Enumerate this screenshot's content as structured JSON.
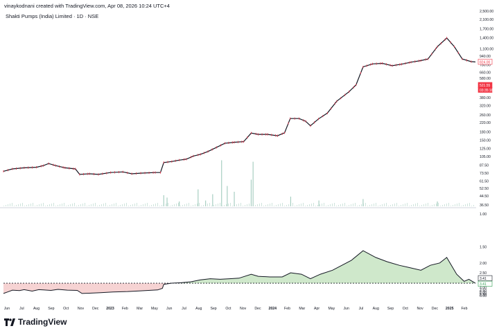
{
  "header": {
    "attribution": "vinaykodnani created with TradingView.com, Apr 08, 2026 10:24 UTC+4",
    "symbol": "Shakti Pumps (India) Limited · 1D · NSE"
  },
  "branding": {
    "logo_text": "TradingView",
    "logo_icon": "tradingview-logo-icon"
  },
  "colors": {
    "price_line": "#131722",
    "up_tick": "#131722",
    "down_tick": "#e23a4f",
    "volume": "#a8cfc2",
    "positive_fill": "#cfe8cb",
    "negative_fill": "#f6d3d3",
    "baseline": "#131722",
    "last_price_bg": "#f23645",
    "axis_text": "#131722"
  },
  "price_labels": {
    "upper_badge": "824.00",
    "price_badge": "521.55",
    "countdown_badge": "03:35:16",
    "osc_badge_top": "3.41",
    "osc_badge_bottom": "3.41"
  },
  "chart_data": [
    {
      "type": "line",
      "title": "Shakti Pumps (India) Limited · 1D · NSE",
      "y_scale": "log",
      "y_ticks": [
        "2,500.00",
        "2,100.00",
        "1,700.00",
        "1,400.00",
        "1,100.00",
        "940.00",
        "780.00",
        "660.00",
        "580.00",
        "460.00",
        "380.00",
        "320.00",
        "260.00",
        "220.00",
        "180.00",
        "150.00",
        "125.00",
        "105.00",
        "87.50",
        "73.50",
        "61.50",
        "52.50",
        "44.50",
        "36.50"
      ],
      "x_ticks": [
        "Jun",
        "Jul",
        "Aug",
        "Sep",
        "Oct",
        "Nov",
        "Dec",
        "2023",
        "Feb",
        "Mar",
        "May",
        "Jun",
        "Jul",
        "Aug",
        "Sep",
        "Oct",
        "Nov",
        "Dec",
        "2024",
        "Feb",
        "Mar",
        "Apr",
        "May",
        "Jun",
        "Jul",
        "Aug",
        "Sep",
        "Oct",
        "Nov",
        "Dec",
        "2025",
        "Feb"
      ],
      "x_date_range": [
        "2022-06-01",
        "2025-03-01"
      ],
      "series": [
        {
          "values": [
            [
              "2022-06-01",
              76
            ],
            [
              "2022-06-20",
              80
            ],
            [
              "2022-07-15",
              82
            ],
            [
              "2022-08-10",
              83
            ],
            [
              "2022-08-25",
              86
            ],
            [
              "2022-09-05",
              90
            ],
            [
              "2022-09-20",
              86
            ],
            [
              "2022-10-10",
              82
            ],
            [
              "2022-11-01",
              80
            ],
            [
              "2022-11-10",
              71
            ],
            [
              "2022-12-01",
              72
            ],
            [
              "2022-12-20",
              71
            ],
            [
              "2023-01-15",
              74
            ],
            [
              "2023-02-10",
              75
            ],
            [
              "2023-03-01",
              72
            ],
            [
              "2023-03-20",
              73
            ],
            [
              "2023-04-20",
              74
            ],
            [
              "2023-05-01",
              74
            ],
            [
              "2023-05-08",
              92
            ],
            [
              "2023-05-25",
              94
            ],
            [
              "2023-06-10",
              97
            ],
            [
              "2023-06-25",
              99
            ],
            [
              "2023-07-10",
              106
            ],
            [
              "2023-07-25",
              110
            ],
            [
              "2023-08-10",
              117
            ],
            [
              "2023-08-28",
              128
            ],
            [
              "2023-09-15",
              140
            ],
            [
              "2023-10-05",
              143
            ],
            [
              "2023-10-25",
              145
            ],
            [
              "2023-11-10",
              175
            ],
            [
              "2023-11-25",
              170
            ],
            [
              "2023-12-15",
              170
            ],
            [
              "2024-01-05",
              165
            ],
            [
              "2024-01-20",
              176
            ],
            [
              "2024-02-01",
              240
            ],
            [
              "2024-02-20",
              240
            ],
            [
              "2024-03-05",
              226
            ],
            [
              "2024-03-15",
              205
            ],
            [
              "2024-04-01",
              238
            ],
            [
              "2024-04-20",
              270
            ],
            [
              "2024-05-10",
              350
            ],
            [
              "2024-06-05",
              430
            ],
            [
              "2024-06-20",
              500
            ],
            [
              "2024-07-05",
              740
            ],
            [
              "2024-07-25",
              790
            ],
            [
              "2024-08-15",
              800
            ],
            [
              "2024-09-05",
              760
            ],
            [
              "2024-09-25",
              785
            ],
            [
              "2024-10-15",
              820
            ],
            [
              "2024-11-05",
              850
            ],
            [
              "2024-11-20",
              880
            ],
            [
              "2024-12-10",
              1150
            ],
            [
              "2024-12-30",
              1390
            ],
            [
              "2025-01-15",
              1150
            ],
            [
              "2025-02-01",
              880
            ],
            [
              "2025-02-20",
              830
            ],
            [
              "2025-03-01",
              824
            ]
          ]
        }
      ]
    },
    {
      "type": "bar",
      "series": [
        {
          "name": "Volume",
          "values": [
            [
              "2023-05-08",
              0.23
            ],
            [
              "2023-05-15",
              0.18
            ],
            [
              "2023-06-10",
              0.1
            ],
            [
              "2023-07-20",
              0.35
            ],
            [
              "2023-08-05",
              0.12
            ],
            [
              "2023-08-20",
              0.25
            ],
            [
              "2023-09-08",
              0.95
            ],
            [
              "2023-09-20",
              0.42
            ],
            [
              "2023-10-05",
              0.3
            ],
            [
              "2023-11-10",
              0.55
            ],
            [
              "2023-11-14",
              0.92
            ],
            [
              "2024-02-02",
              0.2
            ],
            [
              "2024-04-02",
              0.12
            ],
            [
              "2024-07-05",
              0.15
            ],
            [
              "2024-12-10",
              0.1
            ]
          ]
        }
      ]
    },
    {
      "type": "area",
      "y_scale": "reciprocal",
      "y_ticks": [
        "1.00",
        "1.50",
        "2.00",
        "2.50",
        "3.00",
        "4.00",
        "4.50",
        "5.00",
        "5.50",
        "6.00"
      ],
      "baseline": 3.41,
      "series": [
        {
          "values": [
            [
              "2022-06-01",
              5.3
            ],
            [
              "2022-06-10",
              4.9
            ],
            [
              "2022-06-20",
              4.5
            ],
            [
              "2022-07-05",
              4.6
            ],
            [
              "2022-07-15",
              4.4
            ],
            [
              "2022-08-01",
              4.7
            ],
            [
              "2022-08-15",
              4.4
            ],
            [
              "2022-08-25",
              4.45
            ],
            [
              "2022-09-10",
              4.55
            ],
            [
              "2022-09-25",
              4.35
            ],
            [
              "2022-10-15",
              4.5
            ],
            [
              "2022-11-05",
              4.55
            ],
            [
              "2022-11-15",
              5.3
            ],
            [
              "2022-12-05",
              5.2
            ],
            [
              "2022-12-25",
              5.1
            ],
            [
              "2023-01-20",
              4.9
            ],
            [
              "2023-02-20",
              4.8
            ],
            [
              "2023-03-20",
              4.65
            ],
            [
              "2023-04-25",
              4.45
            ],
            [
              "2023-05-05",
              4.15
            ],
            [
              "2023-05-08",
              3.55
            ],
            [
              "2023-05-25",
              3.4
            ],
            [
              "2023-06-15",
              3.35
            ],
            [
              "2023-07-05",
              3.25
            ],
            [
              "2023-07-25",
              3.05
            ],
            [
              "2023-08-15",
              2.95
            ],
            [
              "2023-09-05",
              3.0
            ],
            [
              "2023-09-25",
              2.95
            ],
            [
              "2023-10-15",
              2.9
            ],
            [
              "2023-11-10",
              2.6
            ],
            [
              "2023-11-25",
              2.75
            ],
            [
              "2023-12-20",
              2.8
            ],
            [
              "2024-01-15",
              2.8
            ],
            [
              "2024-02-02",
              2.5
            ],
            [
              "2024-02-25",
              2.6
            ],
            [
              "2024-03-15",
              2.95
            ],
            [
              "2024-04-05",
              2.6
            ],
            [
              "2024-05-01",
              2.35
            ],
            [
              "2024-06-10",
              1.9
            ],
            [
              "2024-07-05",
              1.6
            ],
            [
              "2024-08-01",
              1.8
            ],
            [
              "2024-08-25",
              1.95
            ],
            [
              "2024-09-20",
              2.1
            ],
            [
              "2024-10-10",
              2.2
            ],
            [
              "2024-11-05",
              2.35
            ],
            [
              "2024-11-25",
              2.1
            ],
            [
              "2024-12-15",
              2.0
            ],
            [
              "2024-12-30",
              1.8
            ],
            [
              "2025-01-20",
              2.6
            ],
            [
              "2025-02-05",
              3.2
            ],
            [
              "2025-02-15",
              3.0
            ],
            [
              "2025-03-01",
              3.41
            ]
          ]
        }
      ]
    }
  ]
}
